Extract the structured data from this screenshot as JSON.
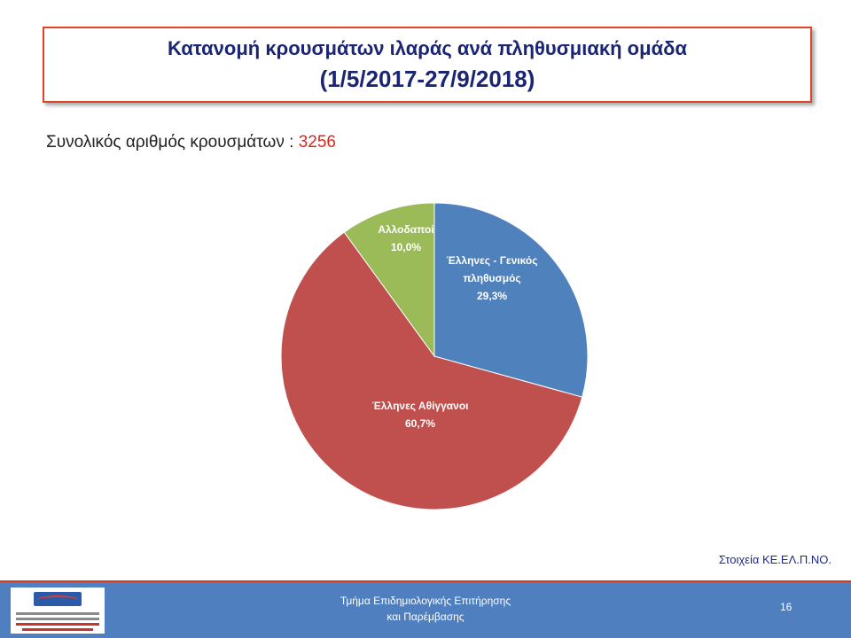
{
  "header": {
    "title_line1": "Κατανομή κρουσμάτων ιλαράς ανά πληθυσμιακή ομάδα",
    "title_line2": "(1/5/2017-27/9/2018)"
  },
  "summary": {
    "label": "Συνολικός αριθμός κρουσμάτων : ",
    "value": "3256"
  },
  "chart_data": {
    "type": "pie",
    "slices": [
      {
        "label": "Έλληνες - Γενικός πληθυσμός",
        "label_lines": [
          "Έλληνες - Γενικός",
          "πληθυσμός"
        ],
        "value": 29.3,
        "pct_label": "29,3%",
        "color": "#4f81bd"
      },
      {
        "label": "Έλληνες Αθίγγανοι",
        "label_lines": [
          "Έλληνες Αθίγγανοι"
        ],
        "value": 60.7,
        "pct_label": "60,7%",
        "color": "#c0504d"
      },
      {
        "label": "Αλλοδαποί",
        "label_lines": [
          "Αλλοδαποί"
        ],
        "value": 10.0,
        "pct_label": "10,0%",
        "color": "#9bbb59"
      }
    ]
  },
  "source": "Στοιχεία ΚΕ.ΕΛ.Π.ΝΟ.",
  "footer": {
    "line1": "Τμήμα Επιδημιολογικής Επιτήρησης",
    "line2": "και Παρέμβασης",
    "page": "16"
  },
  "colors": {
    "title_text": "#1a2573",
    "title_border": "#e0452b",
    "footer_bg": "#4f7fbf",
    "total_value": "#d9271f"
  }
}
